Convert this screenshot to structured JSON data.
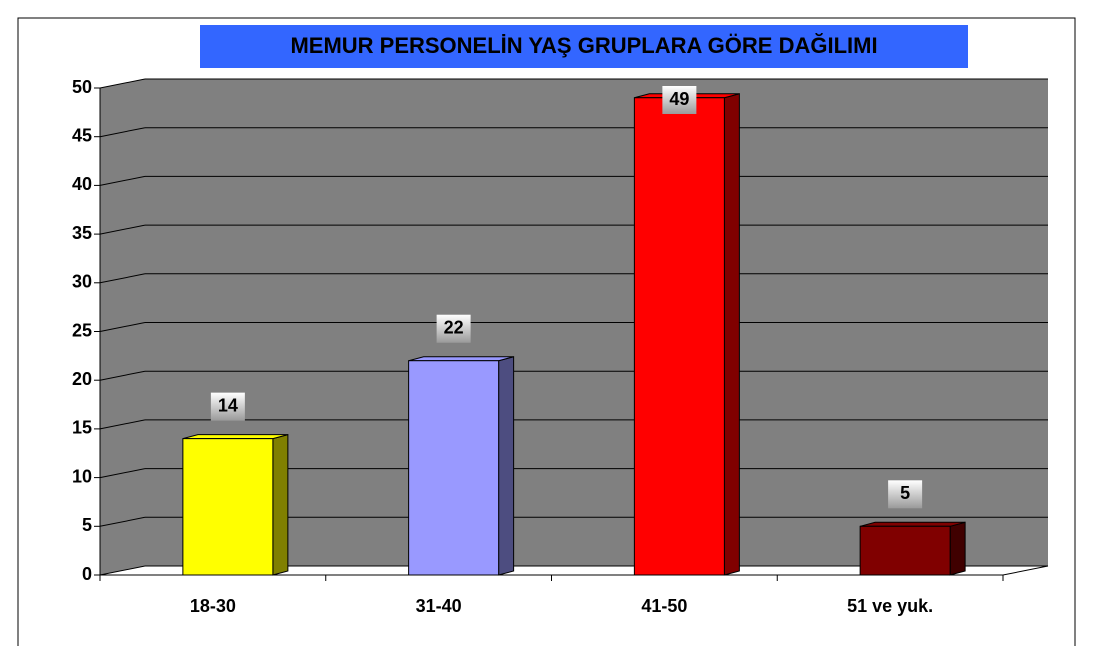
{
  "chart_data": {
    "type": "bar3d",
    "title": "MEMUR PERSONELİN YAŞ GRUPLARA GÖRE DAĞILIMI",
    "categories": [
      "18-30",
      "31-40",
      "41-50",
      "51 ve yuk."
    ],
    "values": [
      14,
      22,
      49,
      5
    ],
    "colors": [
      "#ffff00",
      "#9999ff",
      "#ff0000",
      "#800000"
    ],
    "side_colors": [
      "#808000",
      "#4d4d80",
      "#800000",
      "#400000"
    ],
    "ylim": [
      0,
      50
    ],
    "yticks": [
      0,
      5,
      10,
      15,
      20,
      25,
      30,
      35,
      40,
      45,
      50
    ],
    "grid": true
  }
}
